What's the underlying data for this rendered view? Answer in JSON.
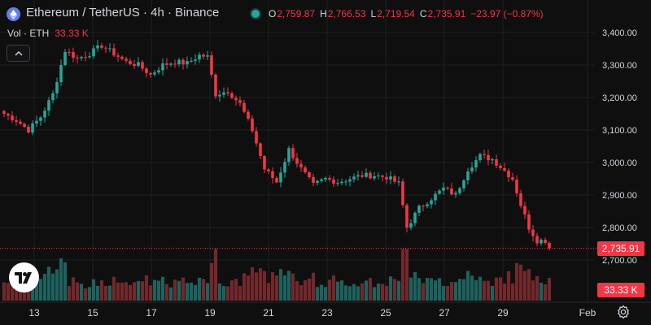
{
  "header": {
    "symbol_title": "Ethereum / TetherUS · 4h · Binance",
    "ohlc": [
      {
        "key": "O",
        "value": "2,759.87"
      },
      {
        "key": "H",
        "value": "2,766.53"
      },
      {
        "key": "L",
        "value": "2,719.54"
      },
      {
        "key": "C",
        "value": "2,735.91"
      }
    ],
    "change": "−23.97 (−0.87%)"
  },
  "volume_indicator": {
    "label": "Vol · ETH",
    "value": "33.33 K"
  },
  "price_axis": {
    "labels": [
      "3,400.00",
      "3,300.00",
      "3,200.00",
      "3,100.00",
      "3,000.00",
      "2,900.00",
      "2,800.00",
      "2,700.00"
    ]
  },
  "time_axis": {
    "labels": [
      "13",
      "15",
      "17",
      "19",
      "21",
      "23",
      "25",
      "27",
      "29",
      "Feb"
    ]
  },
  "last_price_tag": "2,735.91",
  "volume_tag": "33.33 K",
  "colors": {
    "up": "#26a69a",
    "down": "#f23645",
    "background": "#0f0f0f",
    "grid": "#1e1f22",
    "text": "#d1d4dc"
  },
  "icons": {
    "logo": "ethereum-logo-icon",
    "collapse": "chevron-up-icon",
    "brand": "tradingview-logo-icon",
    "settings": "gear-icon"
  },
  "chart_data": {
    "type": "candlestick",
    "timeframe": "4h",
    "price_range": [
      2650,
      3430
    ],
    "price_ticks": [
      3400,
      3300,
      3200,
      3100,
      3000,
      2900,
      2800,
      2700
    ],
    "keypoints": [
      {
        "t": 0,
        "p": 3150
      },
      {
        "t": 3,
        "p": 3130
      },
      {
        "t": 6,
        "p": 3100
      },
      {
        "t": 9,
        "p": 3140
      },
      {
        "t": 12,
        "p": 3210
      },
      {
        "t": 15,
        "p": 3345
      },
      {
        "t": 18,
        "p": 3320
      },
      {
        "t": 21,
        "p": 3335
      },
      {
        "t": 24,
        "p": 3360
      },
      {
        "t": 27,
        "p": 3335
      },
      {
        "t": 30,
        "p": 3310
      },
      {
        "t": 33,
        "p": 3300
      },
      {
        "t": 36,
        "p": 3270
      },
      {
        "t": 39,
        "p": 3300
      },
      {
        "t": 42,
        "p": 3310
      },
      {
        "t": 45,
        "p": 3305
      },
      {
        "t": 48,
        "p": 3330
      },
      {
        "t": 50,
        "p": 3325
      },
      {
        "t": 52,
        "p": 3210
      },
      {
        "t": 55,
        "p": 3220
      },
      {
        "t": 58,
        "p": 3180
      },
      {
        "t": 61,
        "p": 3100
      },
      {
        "t": 64,
        "p": 2980
      },
      {
        "t": 67,
        "p": 2940
      },
      {
        "t": 70,
        "p": 3040
      },
      {
        "t": 73,
        "p": 2980
      },
      {
        "t": 76,
        "p": 2930
      },
      {
        "t": 79,
        "p": 2950
      },
      {
        "t": 82,
        "p": 2940
      },
      {
        "t": 85,
        "p": 2950
      },
      {
        "t": 88,
        "p": 2960
      },
      {
        "t": 91,
        "p": 2960
      },
      {
        "t": 94,
        "p": 2955
      },
      {
        "t": 97,
        "p": 2935
      },
      {
        "t": 99,
        "p": 2800
      },
      {
        "t": 102,
        "p": 2860
      },
      {
        "t": 105,
        "p": 2890
      },
      {
        "t": 108,
        "p": 2920
      },
      {
        "t": 111,
        "p": 2900
      },
      {
        "t": 114,
        "p": 2980
      },
      {
        "t": 117,
        "p": 3020
      },
      {
        "t": 120,
        "p": 3010
      },
      {
        "t": 123,
        "p": 2975
      },
      {
        "t": 125,
        "p": 2950
      },
      {
        "t": 127,
        "p": 2870
      },
      {
        "t": 129,
        "p": 2800
      },
      {
        "t": 131,
        "p": 2760
      },
      {
        "t": 133,
        "p": 2760
      },
      {
        "t": 134,
        "p": 2736
      }
    ],
    "last_price": 2735.91,
    "volume_level_label": "33.33 K"
  }
}
